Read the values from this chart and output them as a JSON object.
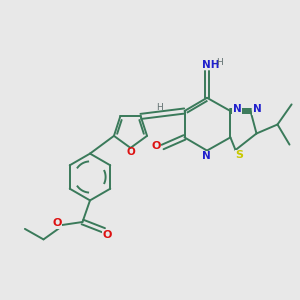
{
  "background_color": "#e8e8e8",
  "bond_color": "#3a7a5a",
  "N_color": "#2020cc",
  "S_color": "#c8c800",
  "O_color": "#dd1111",
  "H_color": "#607070",
  "figsize": [
    3.0,
    3.0
  ],
  "dpi": 100,
  "xlim": [
    0,
    10
  ],
  "ylim": [
    0,
    10
  ]
}
